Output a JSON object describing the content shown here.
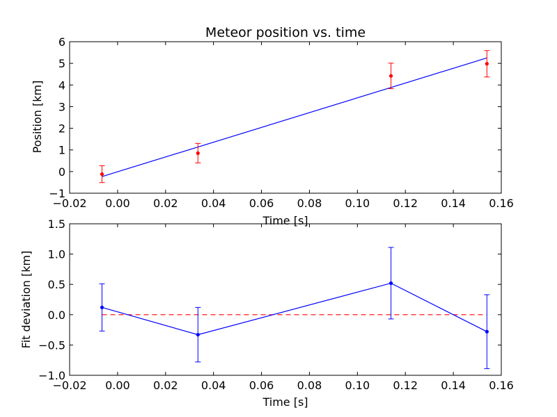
{
  "chart_data": [
    {
      "type": "scatter",
      "title": "Meteor position vs. time",
      "xlabel": "Time [s]",
      "ylabel": "Position [km]",
      "xlim": [
        -0.02,
        0.16
      ],
      "ylim": [
        -1,
        6
      ],
      "xticks": [
        "−0.02",
        "0.00",
        "0.02",
        "0.04",
        "0.06",
        "0.08",
        "0.10",
        "0.12",
        "0.14",
        "0.16"
      ],
      "yticks": [
        "−1",
        "0",
        "1",
        "2",
        "3",
        "4",
        "5",
        "6"
      ],
      "grid": false,
      "points": {
        "x": [
          -0.0065,
          0.0335,
          0.114,
          0.154
        ],
        "y": [
          -0.12,
          0.85,
          4.42,
          4.98
        ],
        "yerr": [
          0.39,
          0.45,
          0.59,
          0.61
        ],
        "color": "#ff0000"
      },
      "fit_line": {
        "x": [
          -0.0065,
          0.154
        ],
        "y": [
          -0.23,
          5.25
        ],
        "color": "#0000ff"
      }
    },
    {
      "type": "line",
      "title": "",
      "xlabel": "Time [s]",
      "ylabel": "Fit deviation [km]",
      "xlim": [
        -0.02,
        0.16
      ],
      "ylim": [
        -1.0,
        1.5
      ],
      "xticks": [
        "−0.02",
        "0.00",
        "0.02",
        "0.04",
        "0.06",
        "0.08",
        "0.10",
        "0.12",
        "0.14",
        "0.16"
      ],
      "yticks": [
        "−1.0",
        "−0.5",
        "0.0",
        "0.5",
        "1.0",
        "1.5"
      ],
      "grid": false,
      "series": {
        "x": [
          -0.0065,
          0.0335,
          0.114,
          0.154
        ],
        "y": [
          0.12,
          -0.33,
          0.52,
          -0.28
        ],
        "yerr": [
          0.39,
          0.45,
          0.59,
          0.61
        ],
        "color": "#0000ff"
      },
      "reference_line": {
        "x": [
          -0.0065,
          0.154
        ],
        "y": [
          0,
          0
        ],
        "color": "#ff0000",
        "style": "dashed"
      }
    }
  ]
}
